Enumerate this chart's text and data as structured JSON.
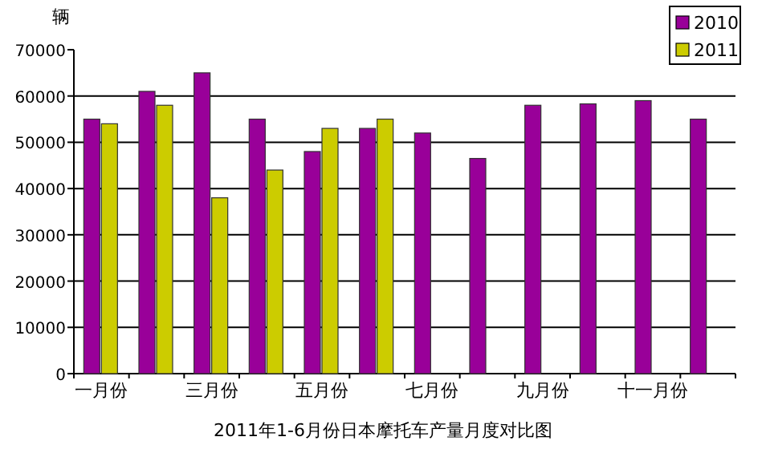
{
  "chart_data": {
    "type": "bar",
    "title": "2011年1-6月份日本摩托车产量月度对比图",
    "ylabel": "辆",
    "categories": [
      "一月份",
      null,
      "三月份",
      null,
      "五月份",
      null,
      "七月份",
      null,
      "九月份",
      null,
      "十一月份",
      null
    ],
    "series": [
      {
        "name": "2010",
        "color": "#990099",
        "values": [
          55000,
          61000,
          65000,
          55000,
          48000,
          53000,
          52000,
          46500,
          58000,
          58300,
          59000,
          55000
        ]
      },
      {
        "name": "2011",
        "color": "#cccc00",
        "values": [
          54000,
          58000,
          38000,
          44000,
          53000,
          55000,
          null,
          null,
          null,
          null,
          null,
          null
        ]
      }
    ],
    "ylim": [
      0,
      70000
    ],
    "yticks": [
      0,
      10000,
      20000,
      30000,
      40000,
      50000,
      60000,
      70000
    ],
    "grid": "y",
    "legend": "top right"
  }
}
